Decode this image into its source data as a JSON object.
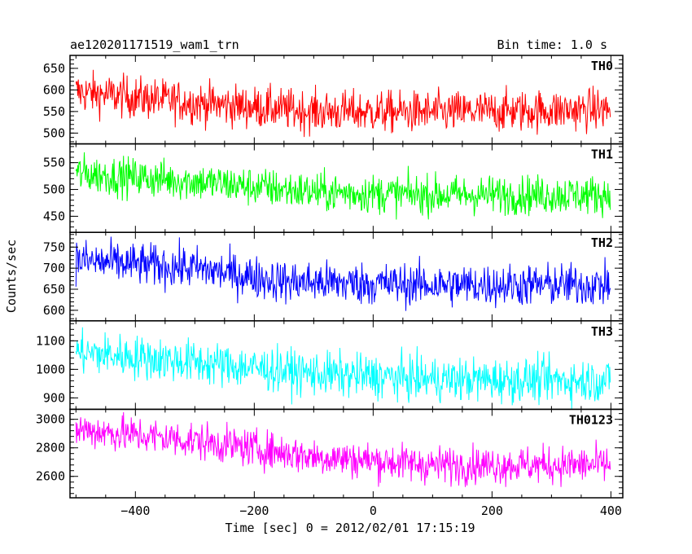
{
  "header": {
    "title": "ae120201171519_wam1_trn",
    "bin_time": "Bin time: 1.0 s"
  },
  "chart_data": {
    "type": "line",
    "xlabel": "Time [sec] 0 = 2012/02/01 17:15:19",
    "ylabel": "Counts/sec",
    "xlim": [
      -510,
      420
    ],
    "x_start": -500,
    "x_end": 399,
    "x_ticks": [
      -400,
      -200,
      0,
      200,
      400
    ],
    "x_tick_labels": [
      "−400",
      "−200",
      "0",
      "200",
      "400"
    ],
    "panels": [
      {
        "name": "TH0",
        "color": "#ff0000",
        "ylim": [
          475,
          680
        ],
        "y_ticks": [
          500,
          550,
          600,
          650
        ],
        "y_tick_labels": [
          "500",
          "550",
          "600",
          "650"
        ],
        "trend": [
          {
            "x": -500,
            "y": 595
          },
          {
            "x": -300,
            "y": 570
          },
          {
            "x": -100,
            "y": 550
          },
          {
            "x": 100,
            "y": 548
          },
          {
            "x": 399,
            "y": 555
          }
        ],
        "noise": 24
      },
      {
        "name": "TH1",
        "color": "#00ff00",
        "ylim": [
          420,
          585
        ],
        "y_ticks": [
          450,
          500,
          550
        ],
        "y_tick_labels": [
          "450",
          "500",
          "550"
        ],
        "trend": [
          {
            "x": -500,
            "y": 530
          },
          {
            "x": -300,
            "y": 515
          },
          {
            "x": -100,
            "y": 495
          },
          {
            "x": 100,
            "y": 490
          },
          {
            "x": 399,
            "y": 490
          }
        ],
        "noise": 18
      },
      {
        "name": "TH2",
        "color": "#0000ff",
        "ylim": [
          575,
          785
        ],
        "y_ticks": [
          600,
          650,
          700,
          750
        ],
        "y_tick_labels": [
          "600",
          "650",
          "700",
          "750"
        ],
        "trend": [
          {
            "x": -500,
            "y": 718
          },
          {
            "x": -300,
            "y": 700
          },
          {
            "x": -150,
            "y": 668
          },
          {
            "x": 100,
            "y": 660
          },
          {
            "x": 399,
            "y": 660
          }
        ],
        "noise": 25
      },
      {
        "name": "TH3",
        "color": "#00ffff",
        "ylim": [
          860,
          1170
        ],
        "y_ticks": [
          900,
          1000,
          1100
        ],
        "y_tick_labels": [
          "900",
          "1000",
          "1100"
        ],
        "trend": [
          {
            "x": -500,
            "y": 1060
          },
          {
            "x": -300,
            "y": 1025
          },
          {
            "x": -100,
            "y": 985
          },
          {
            "x": 100,
            "y": 965
          },
          {
            "x": 399,
            "y": 960
          }
        ],
        "noise": 38
      },
      {
        "name": "TH0123",
        "color": "#ff00ff",
        "ylim": [
          2450,
          3070
        ],
        "y_ticks": [
          2600,
          2800,
          3000
        ],
        "y_tick_labels": [
          "2600",
          "2800",
          "3000"
        ],
        "trend": [
          {
            "x": -500,
            "y": 2930
          },
          {
            "x": -300,
            "y": 2850
          },
          {
            "x": -100,
            "y": 2740
          },
          {
            "x": 100,
            "y": 2680
          },
          {
            "x": 399,
            "y": 2680
          }
        ],
        "noise": 65
      }
    ]
  }
}
